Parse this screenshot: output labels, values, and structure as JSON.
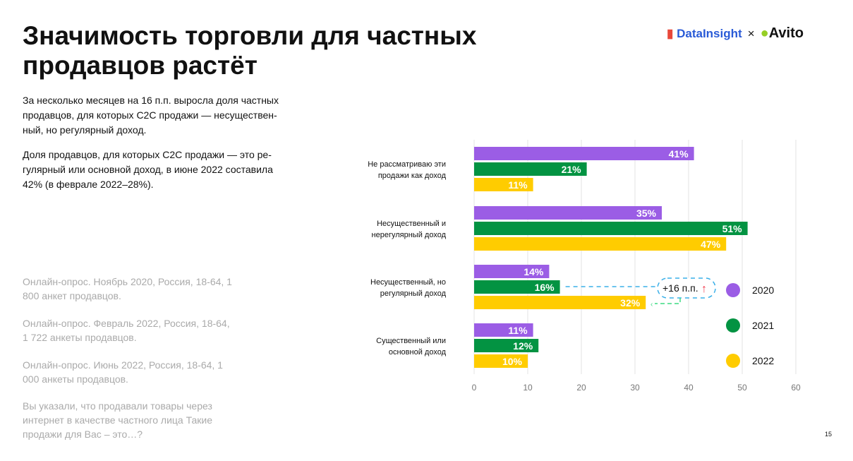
{
  "title": "Значимость торговли для частных продавцов растёт",
  "para1": "За несколько месяцев на 16 п.п. выросла доля частных продавцов, для которых C2C продажи — несуществен-ный, но регулярный доход.",
  "para2": "Доля продавцов, для которых C2C продажи — это ре-гулярный или основной доход, в июне 2022 составила 42% (в феврале 2022–28%).",
  "sources": [
    "Онлайн-опрос. Ноябрь 2020, Россия, 18-64, 1 800 анкет продавцов.",
    "Онлайн-опрос. Февраль 2022, Россия, 18-64, 1 722 анкеты продавцов.",
    "Онлайн-опрос. Июнь 2022, Россия, 18-64, 1 000 анкеты продавцов.",
    "Вы указали, что продавали товары через интернет в качестве частного лица  Такие продажи для Вас – это…?"
  ],
  "logos": {
    "datainsight": "DataInsight",
    "times": "×",
    "avito": "Avito"
  },
  "page_number": "15",
  "annotation": "+16 п.п.",
  "chart_data": {
    "type": "bar",
    "orientation": "horizontal",
    "categories": [
      [
        "Не рассматриваю эти",
        "продажи как доход"
      ],
      [
        "Несущественный и",
        "нерегулярный доход"
      ],
      [
        "Несущественный, но",
        "регулярный доход"
      ],
      [
        "Существенный или",
        "основной доход"
      ]
    ],
    "series": [
      {
        "name": "2020",
        "color": "#9b5de5",
        "values": [
          41,
          35,
          14,
          11
        ]
      },
      {
        "name": "2021",
        "color": "#039342",
        "values": [
          21,
          51,
          16,
          12
        ]
      },
      {
        "name": "2022",
        "color": "#ffcc00",
        "values": [
          11,
          47,
          32,
          10
        ]
      }
    ],
    "xlim": [
      0,
      60
    ],
    "xticks": [
      0,
      10,
      20,
      30,
      40,
      50,
      60
    ],
    "legend": "right",
    "grid": true
  }
}
